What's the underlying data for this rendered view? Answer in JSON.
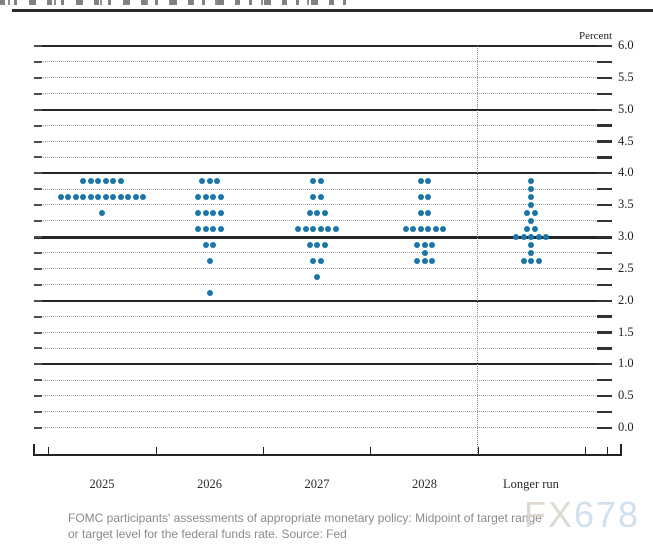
{
  "chart_data": {
    "type": "scatter",
    "subtype": "fomc-dot-plot",
    "title": "",
    "unit_label": "Percent",
    "categories": [
      "2025",
      "2026",
      "2027",
      "2028",
      "Longer run"
    ],
    "y_axis": {
      "range": [
        0.0,
        6.0
      ],
      "tick_step": 0.25,
      "label_step": 0.5,
      "labels": [
        "6.0",
        "5.5",
        "5.0",
        "4.5",
        "4.0",
        "3.5",
        "3.0",
        "2.5",
        "2.0",
        "1.5",
        "1.0",
        "0.5",
        "0.0"
      ],
      "solid_gridline_levels": [
        6.0,
        5.0,
        4.0,
        3.0,
        2.0,
        1.0
      ],
      "emphasized_gridline": 3.0,
      "grid": "dotted-quarters"
    },
    "columns": [
      {
        "label": "2025",
        "dots": [
          {
            "value": 3.875,
            "count": 6
          },
          {
            "value": 3.625,
            "count": 12
          },
          {
            "value": 3.375,
            "count": 1
          }
        ]
      },
      {
        "label": "2026",
        "dots": [
          {
            "value": 3.875,
            "count": 3
          },
          {
            "value": 3.625,
            "count": 4
          },
          {
            "value": 3.375,
            "count": 4
          },
          {
            "value": 3.125,
            "count": 4
          },
          {
            "value": 2.875,
            "count": 2
          },
          {
            "value": 2.625,
            "count": 1
          },
          {
            "value": 2.125,
            "count": 1
          }
        ]
      },
      {
        "label": "2027",
        "dots": [
          {
            "value": 3.875,
            "count": 2
          },
          {
            "value": 3.625,
            "count": 2
          },
          {
            "value": 3.375,
            "count": 3
          },
          {
            "value": 3.125,
            "count": 6
          },
          {
            "value": 2.875,
            "count": 3
          },
          {
            "value": 2.625,
            "count": 2
          },
          {
            "value": 2.375,
            "count": 1
          }
        ]
      },
      {
        "label": "2028",
        "dots": [
          {
            "value": 3.875,
            "count": 2
          },
          {
            "value": 3.625,
            "count": 2
          },
          {
            "value": 3.375,
            "count": 2
          },
          {
            "value": 3.125,
            "count": 6
          },
          {
            "value": 2.875,
            "count": 3
          },
          {
            "value": 2.75,
            "count": 1
          },
          {
            "value": 2.625,
            "count": 3
          }
        ]
      },
      {
        "label": "Longer run",
        "dots": [
          {
            "value": 3.875,
            "count": 1
          },
          {
            "value": 3.75,
            "count": 1
          },
          {
            "value": 3.625,
            "count": 1
          },
          {
            "value": 3.5,
            "count": 1
          },
          {
            "value": 3.375,
            "count": 2
          },
          {
            "value": 3.25,
            "count": 1
          },
          {
            "value": 3.125,
            "count": 2
          },
          {
            "value": 3.0,
            "count": 5
          },
          {
            "value": 2.875,
            "count": 1
          },
          {
            "value": 2.75,
            "count": 1
          },
          {
            "value": 2.625,
            "count": 3
          }
        ]
      }
    ],
    "separator_after_category": "2028",
    "legend_position": "none",
    "colors": {
      "dot": "#1a75a9",
      "solid_grid": "#262626",
      "dotted_grid": "#a2a2a2",
      "axis": "#222222"
    }
  },
  "caption": {
    "line1": "FOMC participants' assessments of appropriate monetary policy: Midpoint of target range",
    "line2": "or target level for the federal funds rate. Source: Fed",
    "color": "#8a8a8a"
  },
  "watermark": {
    "part1": "FX",
    "part2": "678",
    "part1_color": "#d8d0c6",
    "part2_color": "#c6d9ea"
  }
}
